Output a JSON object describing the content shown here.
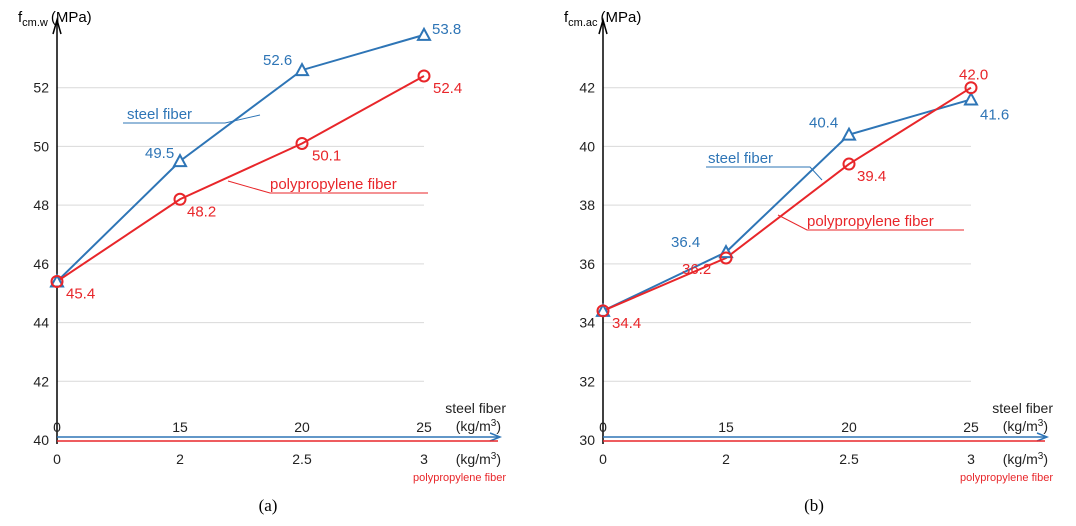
{
  "colors": {
    "steel": "#2e75b6",
    "polypropylene": "#e8262a",
    "axis": "#000000",
    "grid": "#d9d9d9"
  },
  "chart_data": [
    {
      "type": "line",
      "caption": "(a)",
      "ylabel_main": "f",
      "ylabel_sub": "cm.w",
      "ylabel_unit": "(MPa)",
      "ylim": [
        40,
        54
      ],
      "yticks": [
        40,
        42,
        44,
        46,
        48,
        50,
        52
      ],
      "grid": true,
      "x_positions": [
        0,
        1,
        2,
        3
      ],
      "x_steel_ticks": [
        "0",
        "15",
        "20",
        "25"
      ],
      "x_pp_ticks": [
        "0",
        "2",
        "2.5",
        "3"
      ],
      "x_steel_label": "steel fiber",
      "x_steel_unit": "(kg/m",
      "x_pp_unit": "(kg/m",
      "x_pp_label": "polypropylene fiber",
      "series": [
        {
          "name": "steel fiber",
          "marker": "triangle",
          "values": [
            45.4,
            49.5,
            52.6,
            53.8
          ],
          "labels": [
            "",
            "49.5",
            "52.6",
            "53.8"
          ]
        },
        {
          "name": "polypropylene fiber",
          "marker": "circle",
          "values": [
            45.4,
            48.2,
            50.1,
            52.4
          ],
          "labels": [
            "45.4",
            "48.2",
            "50.1",
            "52.4"
          ]
        }
      ]
    },
    {
      "type": "line",
      "caption": "(b)",
      "ylabel_main": "f",
      "ylabel_sub": "cm.ac",
      "ylabel_unit": "(MPa)",
      "ylim": [
        30,
        44
      ],
      "yticks": [
        30,
        32,
        34,
        36,
        38,
        40,
        42
      ],
      "grid": true,
      "x_positions": [
        0,
        1,
        2,
        3
      ],
      "x_steel_ticks": [
        "0",
        "15",
        "20",
        "25"
      ],
      "x_pp_ticks": [
        "0",
        "2",
        "2.5",
        "3"
      ],
      "x_steel_label": "steel fiber",
      "x_steel_unit": "(kg/m",
      "x_pp_unit": "(kg/m",
      "x_pp_label": "polypropylene fiber",
      "series": [
        {
          "name": "steel fiber",
          "marker": "triangle",
          "values": [
            34.4,
            36.4,
            40.4,
            41.6
          ],
          "labels": [
            "",
            "36.4",
            "40.4",
            "41.6"
          ]
        },
        {
          "name": "polypropylene fiber",
          "marker": "circle",
          "values": [
            34.4,
            36.2,
            39.4,
            42.0
          ],
          "labels": [
            "34.4",
            "36.2",
            "39.4",
            "42.0"
          ]
        }
      ]
    }
  ]
}
